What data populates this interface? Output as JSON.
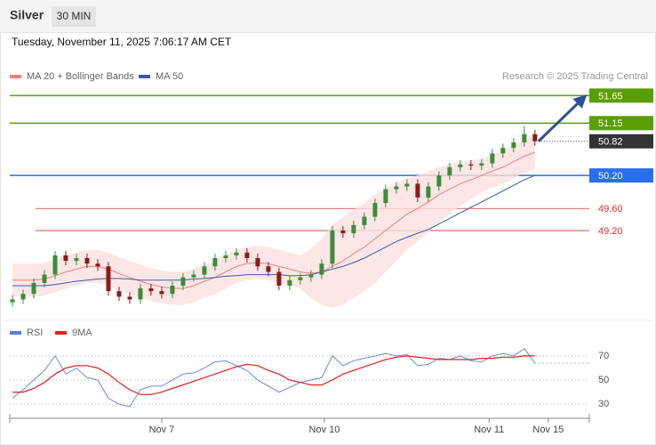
{
  "header": {
    "symbol": "Silver",
    "interval": "30 MIN",
    "datetime": "Tuesday, November 11, 2025 7:06:17 AM CET"
  },
  "chart_data": [
    {
      "type": "candlestick",
      "credit": "Research © 2025 Trading Central",
      "up_color": "#3b8c3b",
      "down_color": "#8b1a1a",
      "open": [
        47.9,
        47.95,
        48.05,
        48.25,
        48.4,
        48.75,
        48.65,
        48.7,
        48.6,
        48.55,
        48.1,
        48.0,
        47.95,
        48.15,
        48.1,
        48.05,
        48.2,
        48.35,
        48.4,
        48.55,
        48.7,
        48.75,
        48.8,
        48.7,
        48.55,
        48.45,
        48.2,
        48.3,
        48.35,
        48.4,
        48.6,
        49.2,
        49.15,
        49.3,
        49.45,
        49.7,
        49.95,
        50.0,
        50.05,
        49.8,
        50.0,
        50.2,
        50.35,
        50.4,
        50.38,
        50.42,
        50.6,
        50.7,
        50.8,
        50.95
      ],
      "high": [
        48.03,
        48.13,
        48.33,
        48.48,
        48.83,
        48.83,
        48.78,
        48.78,
        48.68,
        48.63,
        48.18,
        48.08,
        48.23,
        48.23,
        48.18,
        48.28,
        48.43,
        48.48,
        48.63,
        48.78,
        48.83,
        48.88,
        48.88,
        48.78,
        48.63,
        48.53,
        48.38,
        48.43,
        48.48,
        48.68,
        49.28,
        49.28,
        49.38,
        49.53,
        49.78,
        50.03,
        50.08,
        50.13,
        50.13,
        50.08,
        50.28,
        50.43,
        50.48,
        50.48,
        50.5,
        50.68,
        50.78,
        50.88,
        51.1,
        51.03
      ],
      "low": [
        47.82,
        47.87,
        47.97,
        48.17,
        48.32,
        48.57,
        48.57,
        48.52,
        48.47,
        48.02,
        47.92,
        47.87,
        47.87,
        48.02,
        47.97,
        47.97,
        48.12,
        48.27,
        48.32,
        48.47,
        48.62,
        48.67,
        48.62,
        48.47,
        48.37,
        48.12,
        48.12,
        48.22,
        48.27,
        48.32,
        48.52,
        49.07,
        49.07,
        49.22,
        49.37,
        49.62,
        49.87,
        49.92,
        49.72,
        49.72,
        49.92,
        50.12,
        50.27,
        50.3,
        50.3,
        50.34,
        50.52,
        50.62,
        50.72,
        50.74
      ],
      "close": [
        47.95,
        48.05,
        48.25,
        48.4,
        48.75,
        48.65,
        48.7,
        48.6,
        48.55,
        48.1,
        48.0,
        47.95,
        48.15,
        48.1,
        48.05,
        48.2,
        48.35,
        48.4,
        48.55,
        48.7,
        48.75,
        48.8,
        48.7,
        48.55,
        48.45,
        48.2,
        48.3,
        48.35,
        48.4,
        48.6,
        49.2,
        49.15,
        49.3,
        49.45,
        49.7,
        49.95,
        50.0,
        50.05,
        49.8,
        50.0,
        50.2,
        50.35,
        50.4,
        50.38,
        50.42,
        50.6,
        50.7,
        50.8,
        50.95,
        50.82
      ],
      "series": [
        {
          "name": "MA 20 + Bollinger Bands",
          "color": "#f08080",
          "band_color": "#fde0e0",
          "values": [
            48.3,
            48.3,
            48.3,
            48.32,
            48.38,
            48.45,
            48.5,
            48.55,
            48.55,
            48.5,
            48.42,
            48.35,
            48.28,
            48.22,
            48.18,
            48.15,
            48.15,
            48.2,
            48.28,
            48.35,
            48.45,
            48.55,
            48.6,
            48.62,
            48.6,
            48.55,
            48.5,
            48.45,
            48.42,
            48.45,
            48.55,
            48.65,
            48.78,
            48.9,
            49.05,
            49.2,
            49.35,
            49.5,
            49.6,
            49.72,
            49.85,
            49.95,
            50.05,
            50.12,
            50.2,
            50.28,
            50.35,
            50.45,
            50.55,
            50.62
          ],
          "upper": [
            48.6,
            48.6,
            48.6,
            48.62,
            48.68,
            48.75,
            48.8,
            48.85,
            48.85,
            48.8,
            48.72,
            48.65,
            48.58,
            48.52,
            48.48,
            48.45,
            48.45,
            48.5,
            48.58,
            48.65,
            48.75,
            48.85,
            48.9,
            48.92,
            48.9,
            48.85,
            48.8,
            48.75,
            48.87,
            49.05,
            49.3,
            49.45,
            49.58,
            49.7,
            49.85,
            49.95,
            50.05,
            50.15,
            50.2,
            50.27,
            50.35,
            50.4,
            50.45,
            50.47,
            50.5,
            50.58,
            50.65,
            50.75,
            50.85,
            50.92
          ],
          "lower": [
            48.0,
            48.0,
            48.0,
            48.02,
            48.08,
            48.15,
            48.2,
            48.25,
            48.25,
            48.2,
            48.12,
            48.05,
            47.98,
            47.92,
            47.88,
            47.85,
            47.85,
            47.9,
            47.98,
            48.05,
            48.15,
            48.25,
            48.3,
            48.32,
            48.3,
            48.25,
            48.2,
            48.15,
            47.97,
            47.85,
            47.8,
            47.85,
            47.98,
            48.1,
            48.25,
            48.45,
            48.65,
            48.85,
            49.0,
            49.17,
            49.35,
            49.5,
            49.65,
            49.77,
            49.9,
            49.98,
            50.05,
            50.15,
            50.25,
            50.32
          ]
        },
        {
          "name": "MA 50",
          "color": "#3a5da0",
          "values": [
            48.2,
            48.2,
            48.2,
            48.2,
            48.22,
            48.25,
            48.28,
            48.3,
            48.32,
            48.33,
            48.33,
            48.32,
            48.3,
            48.3,
            48.3,
            48.3,
            48.3,
            48.32,
            48.33,
            48.35,
            48.37,
            48.38,
            48.4,
            48.4,
            48.4,
            48.4,
            48.38,
            48.38,
            48.4,
            48.45,
            48.5,
            48.55,
            48.62,
            48.7,
            48.8,
            48.9,
            49.0,
            49.08,
            49.15,
            49.22,
            49.32,
            49.42,
            49.52,
            49.62,
            49.72,
            49.82,
            49.92,
            50.02,
            50.12,
            50.2
          ]
        }
      ],
      "levels": [
        {
          "value": 51.65,
          "color": "#5a9e00",
          "style": "box"
        },
        {
          "value": 51.15,
          "color": "#5a9e00",
          "style": "box"
        },
        {
          "value": 50.82,
          "color": "#333333",
          "style": "current"
        },
        {
          "value": 50.2,
          "label": "50.20",
          "color": "#2a6ef0",
          "style": "box"
        },
        {
          "value": 49.6,
          "label": "49.60",
          "color": "#e03030",
          "style": "thin"
        },
        {
          "value": 49.2,
          "label": "49.20",
          "color": "#e03030",
          "style": "thin"
        }
      ],
      "xlim": [
        -0.25,
        54.1
      ],
      "ylim": [
        47.65,
        51.85
      ]
    },
    {
      "type": "line",
      "series": [
        {
          "name": "RSI",
          "color": "#5b7fdd",
          "values": [
            35,
            42,
            50,
            58,
            70,
            55,
            60,
            52,
            50,
            35,
            30,
            28,
            42,
            45,
            45,
            50,
            55,
            56,
            60,
            65,
            66,
            62,
            58,
            50,
            45,
            40,
            44,
            48,
            50,
            52,
            70,
            62,
            66,
            68,
            70,
            72,
            70,
            71,
            62,
            63,
            68,
            67,
            70,
            66,
            65,
            70,
            72,
            70,
            76,
            64
          ]
        },
        {
          "name": "9MA",
          "color": "#e02020",
          "values": [
            40,
            40,
            43,
            48,
            55,
            60,
            62,
            62,
            60,
            55,
            48,
            42,
            38,
            38,
            40,
            43,
            46,
            49,
            52,
            55,
            58,
            61,
            63,
            62,
            58,
            55,
            50,
            48,
            46,
            46,
            50,
            55,
            58,
            61,
            64,
            67,
            69,
            70,
            69,
            68,
            67,
            67,
            67,
            67,
            68,
            68,
            69,
            69,
            70,
            70
          ]
        }
      ],
      "xlim": [
        -0.25,
        54.1
      ],
      "ylim": [
        22,
        81
      ],
      "yticks": [
        30,
        50,
        70
      ],
      "grid": true,
      "xticks": [
        {
          "value": 14,
          "label": "Nov 7"
        },
        {
          "value": 29.25,
          "label": "Nov 10"
        },
        {
          "value": 44.7,
          "label": "Nov 11"
        },
        {
          "value": 50.25,
          "label": "Nov 15"
        }
      ]
    }
  ]
}
